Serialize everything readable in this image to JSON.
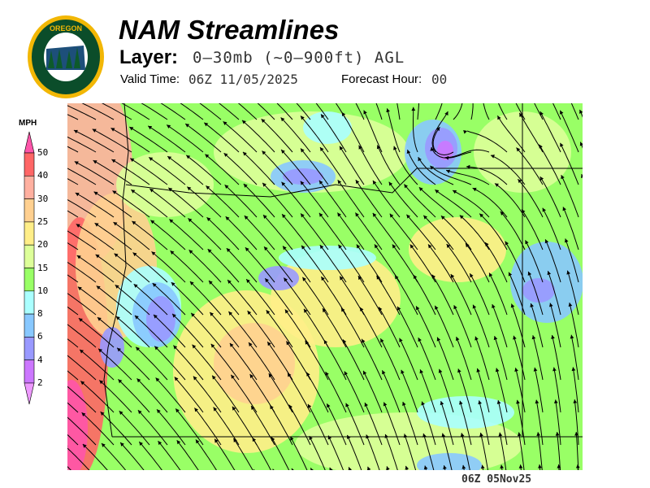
{
  "header": {
    "logo_text": "OREGON DEPARTMENT OF FORESTRY",
    "title": "NAM Streamlines",
    "layer_label": "Layer:",
    "layer_value": "0–30mb (~0–900ft) AGL",
    "valid_time_label": "Valid Time:",
    "valid_time_value": "06Z 11/05/2025",
    "forecast_hour_label": "Forecast Hour:",
    "forecast_hour_value": "00"
  },
  "legend": {
    "unit": "MPH",
    "ticks": [
      "50",
      "40",
      "30",
      "25",
      "20",
      "15",
      "10",
      "8",
      "6",
      "4",
      "2"
    ],
    "colors": {
      "above_50": "#ff55aa",
      "40_50": "#ff6666",
      "30_40": "#ffb0a0",
      "25_30": "#ffd090",
      "20_25": "#ffee88",
      "15_20": "#ddff99",
      "10_15": "#99ff66",
      "8_10": "#aaffff",
      "6_8": "#88c8ff",
      "4_6": "#9999ff",
      "2_4": "#cc77ff",
      "below_2": "#ee99ff"
    }
  },
  "map": {
    "region": "Oregon",
    "field": "wind speed with streamlines"
  },
  "footer": {
    "timestamp": "06Z 05Nov25"
  }
}
